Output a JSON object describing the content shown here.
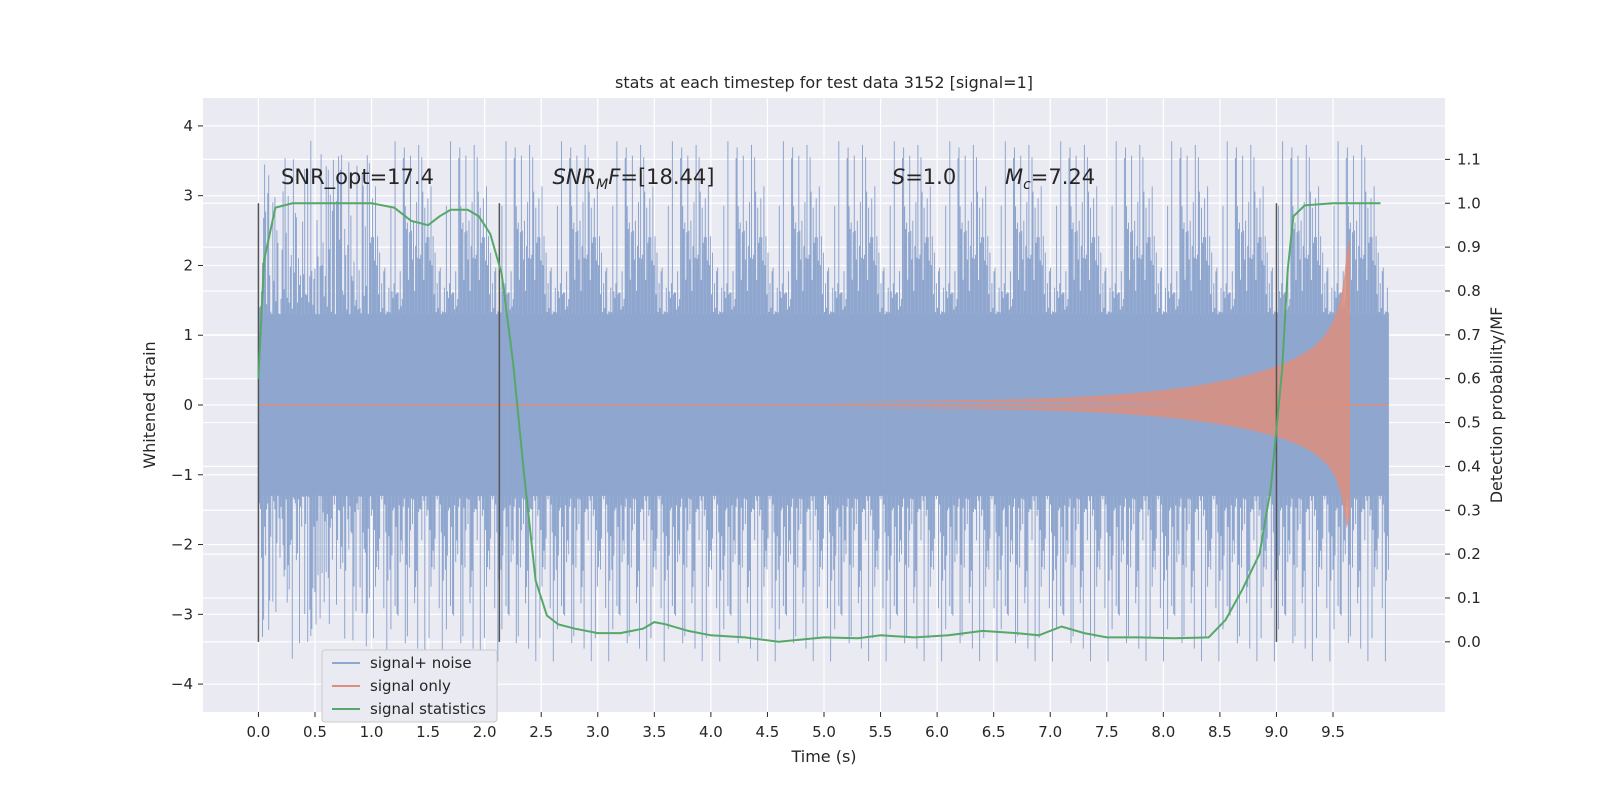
{
  "chart_data": {
    "type": "line",
    "title": "stats at each timestep for test data 3152 [signal=1]",
    "xlabel": "Time (s)",
    "ylabel": "Whitened strain",
    "y2label": "Detection probability/MF",
    "xlim": [
      -0.49,
      10.49
    ],
    "ylim": [
      -4.4,
      4.4
    ],
    "y2lim": [
      -0.16,
      1.24
    ],
    "x_ticks": [
      "0.0",
      "0.5",
      "1.0",
      "1.5",
      "2.0",
      "2.5",
      "3.0",
      "3.5",
      "4.0",
      "4.5",
      "5.0",
      "5.5",
      "6.0",
      "6.5",
      "7.0",
      "7.5",
      "8.0",
      "8.5",
      "9.0",
      "9.5"
    ],
    "y_ticks": [
      "4",
      "3",
      "2",
      "1",
      "0",
      "−1",
      "−2",
      "−3",
      "−4"
    ],
    "y2_ticks": [
      "1.1",
      "1.0",
      "0.9",
      "0.8",
      "0.7",
      "0.6",
      "0.5",
      "0.4",
      "0.3",
      "0.2",
      "0.1",
      "0.0"
    ],
    "grid": true,
    "legend_position": "lower-left",
    "annotations": [
      {
        "key": "snr_opt",
        "text": "SNR_opt=17.4",
        "x": 0.2
      },
      {
        "key": "snr_mf",
        "text": "SNR",
        "sub": "M",
        "rest": "F=[18.44]",
        "italic": true,
        "x": 2.6
      },
      {
        "key": "s",
        "text": "S",
        "rest": "=1.0",
        "italic": true,
        "x": 5.6
      },
      {
        "key": "mc",
        "text": "M",
        "sub": "c",
        "rest": "=7.24",
        "italic": true,
        "x": 6.6
      }
    ],
    "vertical_lines": [
      0.0,
      2.13,
      9.0
    ],
    "series": [
      {
        "name": "signal+ noise",
        "color": "#8fa6cf",
        "style": "noise",
        "x_range": [
          0.0,
          9.99
        ],
        "envelope": [
          -1.3,
          1.3
        ],
        "peak_range": [
          -3.9,
          4.1
        ]
      },
      {
        "name": "signal only",
        "color": "#dd8e7c",
        "style": "chirp",
        "x_range": [
          5.0,
          9.67
        ],
        "peak_amplitude": 2.4
      },
      {
        "name": "signal statistics",
        "color": "#55a868",
        "axis": "right",
        "x": [
          0.0,
          0.05,
          0.1,
          0.15,
          0.3,
          0.6,
          1.0,
          1.2,
          1.35,
          1.5,
          1.6,
          1.7,
          1.85,
          1.95,
          2.05,
          2.15,
          2.25,
          2.35,
          2.45,
          2.55,
          2.65,
          2.8,
          3.0,
          3.2,
          3.4,
          3.5,
          3.6,
          3.8,
          4.0,
          4.3,
          4.6,
          5.0,
          5.3,
          5.5,
          5.8,
          6.1,
          6.4,
          6.7,
          6.9,
          7.1,
          7.3,
          7.5,
          7.8,
          8.1,
          8.4,
          8.55,
          8.7,
          8.85,
          8.95,
          9.05,
          9.1,
          9.15,
          9.25,
          9.5,
          9.8,
          9.92
        ],
        "y": [
          0.6,
          0.87,
          0.93,
          0.99,
          1.0,
          1.0,
          1.0,
          0.99,
          0.96,
          0.95,
          0.97,
          0.985,
          0.985,
          0.97,
          0.93,
          0.84,
          0.64,
          0.38,
          0.14,
          0.06,
          0.04,
          0.03,
          0.02,
          0.02,
          0.03,
          0.045,
          0.04,
          0.025,
          0.015,
          0.01,
          0.0,
          0.01,
          0.008,
          0.015,
          0.01,
          0.015,
          0.025,
          0.02,
          0.015,
          0.035,
          0.02,
          0.01,
          0.01,
          0.008,
          0.01,
          0.05,
          0.12,
          0.2,
          0.35,
          0.62,
          0.85,
          0.97,
          0.995,
          1.0,
          1.0,
          1.0
        ]
      }
    ]
  }
}
